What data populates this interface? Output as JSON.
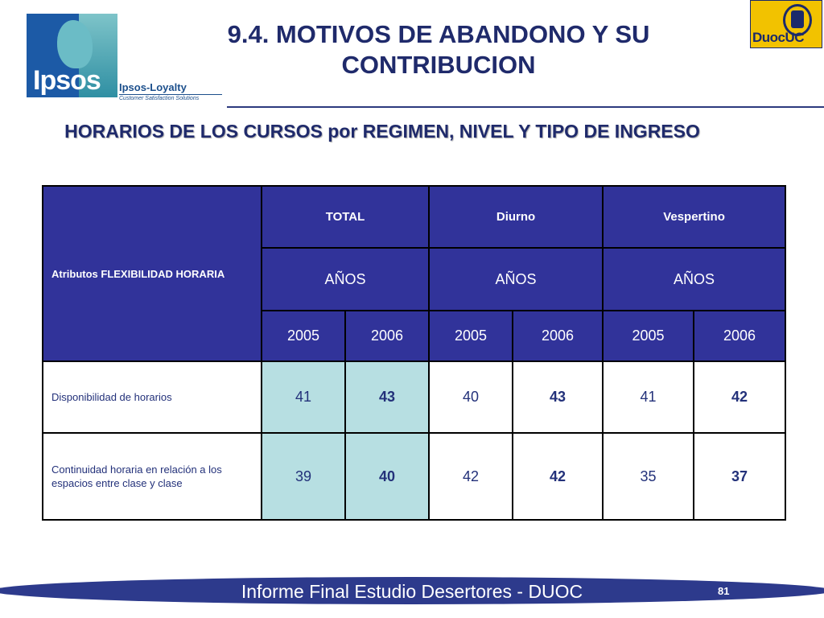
{
  "header": {
    "title": "9.4. MOTIVOS DE ABANDONO Y SU CONTRIBUCION",
    "ipsos_logo_text": "Ipsos",
    "loyalty_brand": "Ipsos-Loyalty",
    "loyalty_tagline": "Customer Satisfaction Solutions",
    "duoc_logo_text": "DuocUC"
  },
  "subtitle": "HORARIOS DE LOS CURSOS por REGIMEN, NIVEL Y TIPO DE INGRESO",
  "table": {
    "row_header": "Atributos FLEXIBILIDAD HORARIA",
    "groups": [
      "TOTAL",
      "Diurno",
      "Vespertino"
    ],
    "subheaders": [
      "AÑOS",
      "AÑOS",
      "AÑOS"
    ],
    "years": [
      "2005",
      "2006",
      "2005",
      "2006",
      "2005",
      "2006"
    ],
    "rows": [
      {
        "label": "Disponibilidad de horarios",
        "values": [
          "41",
          "43",
          "40",
          "43",
          "41",
          "42"
        ]
      },
      {
        "label": "Continuidad horaria en relación a los espacios entre clase y clase",
        "values": [
          "39",
          "40",
          "42",
          "42",
          "35",
          "37"
        ]
      }
    ]
  },
  "footer": {
    "text": "Informe Final Estudio Desertores - DUOC",
    "page_number": "81"
  },
  "colors": {
    "header_fill": "#31339a",
    "highlight_fill": "#b7dfe2",
    "title_color": "#1f2a6b",
    "footer_band": "#2d3a8c"
  }
}
